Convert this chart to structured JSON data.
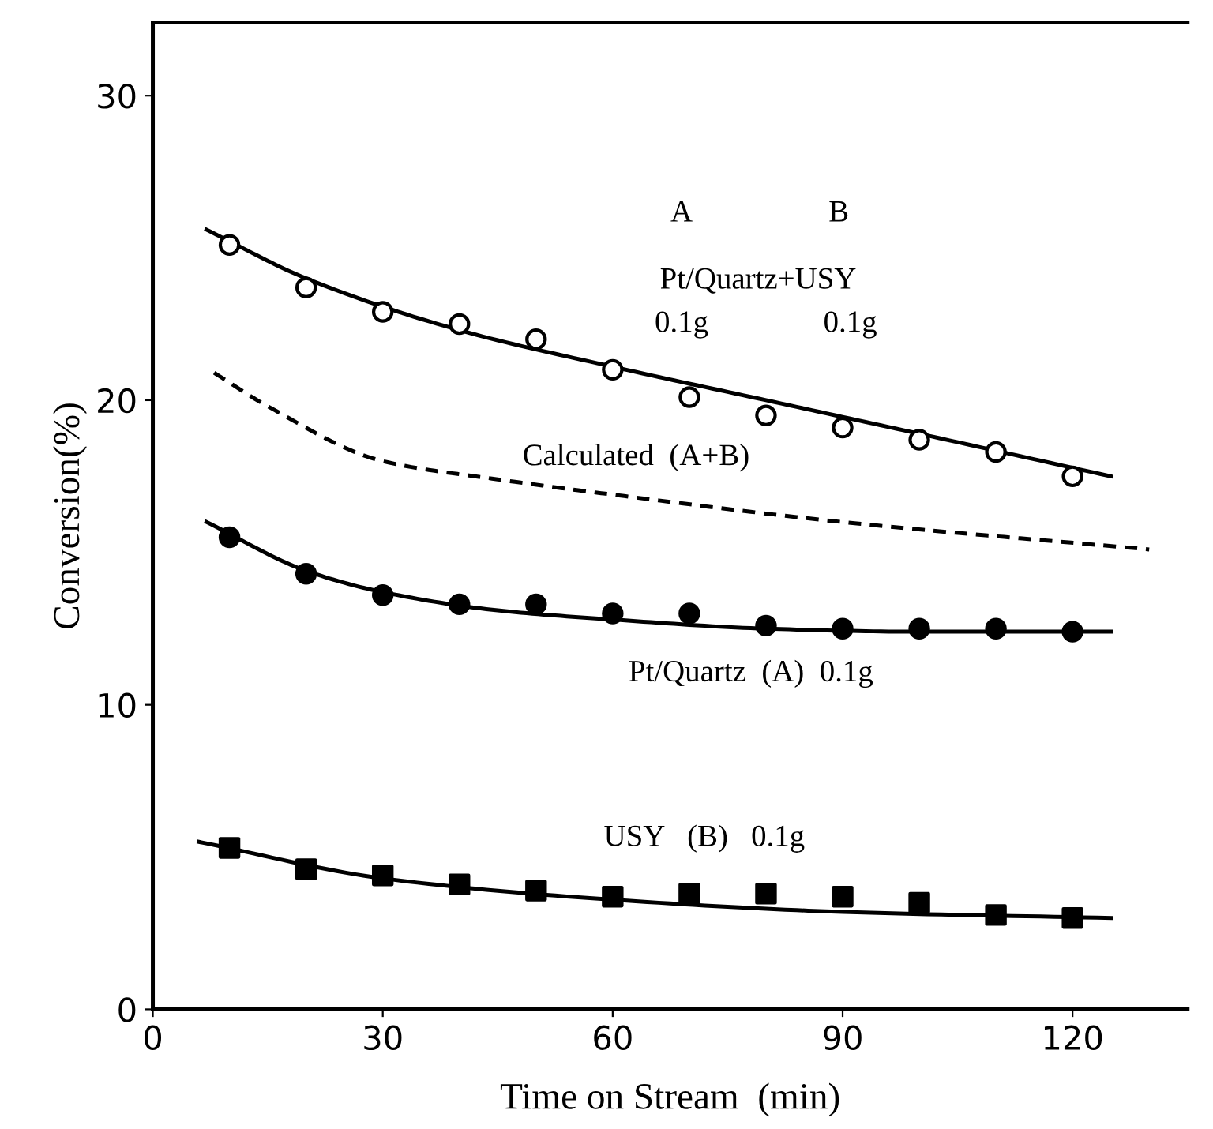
{
  "chart_data": {
    "type": "scatter",
    "xlabel": "Time on Stream  (min)",
    "ylabel": "Conversion(%)",
    "xlim": [
      0,
      135
    ],
    "xticks": [
      0,
      30,
      60,
      90,
      120
    ],
    "ylim": [
      0,
      32.4
    ],
    "yticks": [
      0,
      10,
      20,
      30
    ],
    "grid": false,
    "legend": false,
    "series": [
      {
        "type": "scatter",
        "marker": "circle",
        "color": "#ffffff",
        "x": [
          10,
          20,
          30,
          40,
          50,
          60,
          70,
          80,
          90,
          100,
          110,
          120
        ],
        "values": [
          25.1,
          23.7,
          22.9,
          22.5,
          22.0,
          21.0,
          20.1,
          19.5,
          19.1,
          18.7,
          18.3,
          17.5
        ]
      },
      {
        "type": "scatter",
        "marker": "circle",
        "color": "#000000",
        "x": [
          10,
          20,
          30,
          40,
          50,
          60,
          70,
          80,
          90,
          100,
          110,
          120
        ],
        "values": [
          15.5,
          14.3,
          13.6,
          13.3,
          13.3,
          13.0,
          13.0,
          12.6,
          12.5,
          12.5,
          12.5,
          12.4
        ]
      },
      {
        "type": "scatter",
        "marker": "square",
        "color": "#000000",
        "x": [
          10,
          20,
          30,
          40,
          50,
          60,
          70,
          80,
          90,
          100,
          110,
          120
        ],
        "values": [
          5.3,
          4.6,
          4.4,
          4.1,
          3.9,
          3.7,
          3.8,
          3.8,
          3.7,
          3.5,
          3.1,
          3.0
        ]
      },
      {
        "type": "line",
        "line_style": "solid",
        "color": "#000000",
        "x": [
          7,
          20,
          40,
          60,
          80,
          100,
          125
        ],
        "values": [
          25.6,
          24.0,
          22.3,
          21.1,
          20.0,
          18.9,
          17.5
        ]
      },
      {
        "type": "line",
        "line_style": "dashed",
        "color": "#000000",
        "x": [
          8,
          15,
          30,
          45,
          60,
          90,
          130
        ],
        "values": [
          20.9,
          19.8,
          18.0,
          17.4,
          16.9,
          16.0,
          15.1
        ]
      },
      {
        "type": "line",
        "line_style": "solid",
        "color": "#000000",
        "x": [
          7,
          20,
          30,
          45,
          60,
          80,
          100,
          125
        ],
        "values": [
          16.0,
          14.4,
          13.7,
          13.1,
          12.8,
          12.5,
          12.4,
          12.4
        ]
      },
      {
        "type": "line",
        "line_style": "solid",
        "color": "#000000",
        "x": [
          6,
          30,
          60,
          90,
          125
        ],
        "values": [
          5.5,
          4.3,
          3.6,
          3.2,
          3.0
        ]
      }
    ],
    "annotations": [
      "A",
      "B",
      "Pt/Quartz+USY",
      "0.1g",
      "0.1g",
      "Calculated  (A+B)",
      "Pt/Quartz  (A)  0.1g",
      "USY   (B)   0.1g"
    ]
  }
}
